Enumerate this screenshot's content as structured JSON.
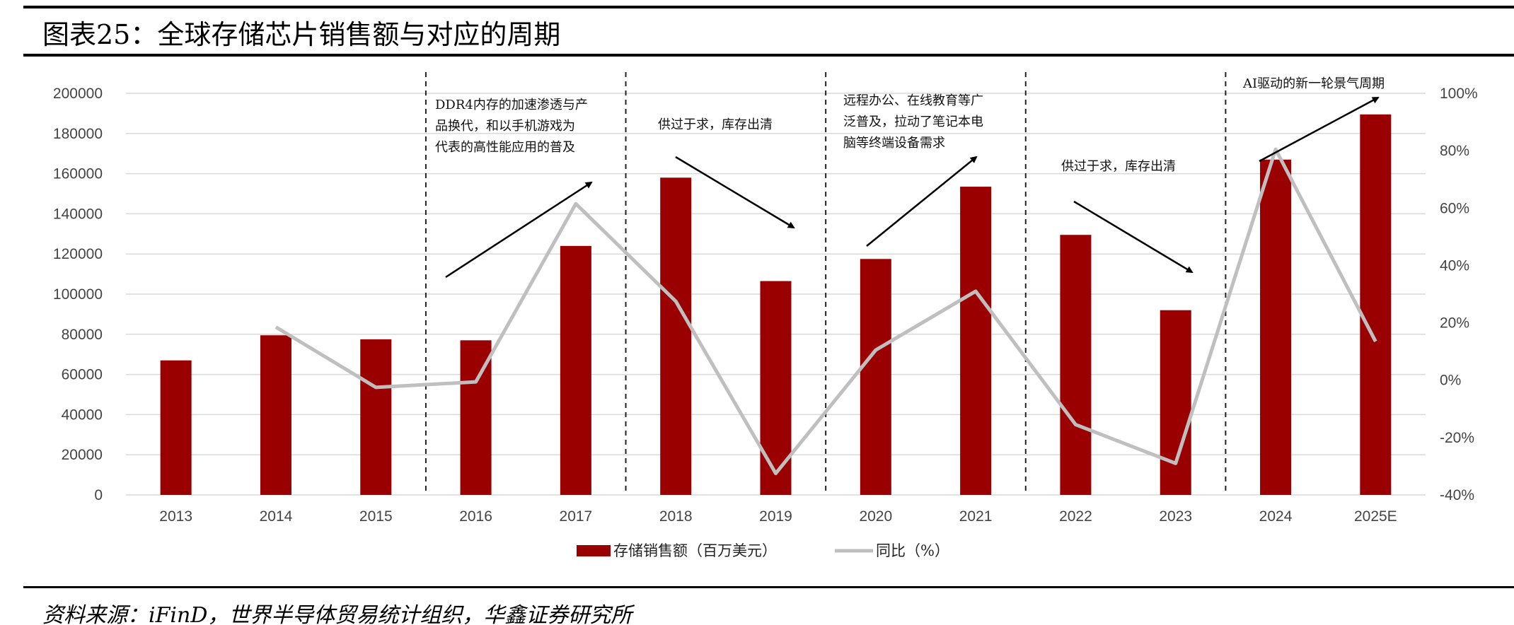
{
  "header": {
    "title": "图表25：全球存储芯片销售额与对应的周期"
  },
  "footer": {
    "source": "资料来源：iFinD，世界半导体贸易统计组织，华鑫证券研究所"
  },
  "colors": {
    "bar": "#9b0000",
    "line": "#bfbfbf",
    "grid": "#d9d9d9",
    "axis_text": "#444444"
  },
  "chart_data": {
    "type": "bar",
    "categories": [
      "2013",
      "2014",
      "2015",
      "2016",
      "2017",
      "2018",
      "2019",
      "2020",
      "2021",
      "2022",
      "2023",
      "2024",
      "2025E"
    ],
    "series": [
      {
        "name": "存储销售额（百万美元）",
        "type": "bar",
        "axis": "left",
        "values": [
          67000,
          79500,
          77500,
          77000,
          124000,
          158000,
          106500,
          117500,
          153500,
          129500,
          92000,
          167000,
          189500
        ]
      },
      {
        "name": "同比（%）",
        "type": "line",
        "axis": "right",
        "values": [
          null,
          18.5,
          -2.5,
          -0.6,
          61.5,
          27.5,
          -32.5,
          10.5,
          31,
          -15.5,
          -29,
          80.5,
          13.5
        ]
      }
    ],
    "y_left": {
      "ylim": [
        0,
        200000
      ],
      "ticks": [
        "0",
        "20000",
        "40000",
        "60000",
        "80000",
        "100000",
        "120000",
        "140000",
        "160000",
        "180000",
        "200000"
      ]
    },
    "y_right": {
      "ylim": [
        -40,
        100
      ],
      "ticks": [
        "-40%",
        "-20%",
        "0%",
        "20%",
        "40%",
        "60%",
        "80%",
        "100%"
      ]
    },
    "grid": true,
    "legend": "bottom-center",
    "annotations": [
      {
        "lines": [
          "DDR4内存的加速渗透与产",
          "品换代，和以手机游戏为",
          "代表的高性能应用的普及"
        ]
      },
      {
        "lines": [
          "供过于求，库存出清"
        ]
      },
      {
        "lines": [
          "远程办公、在线教育等广",
          "泛普及，拉动了笔记本电",
          "脑等终端设备需求"
        ]
      },
      {
        "lines": [
          "供过于求，库存出清"
        ]
      },
      {
        "lines": [
          "AI驱动的新一轮景气周期"
        ]
      }
    ]
  }
}
